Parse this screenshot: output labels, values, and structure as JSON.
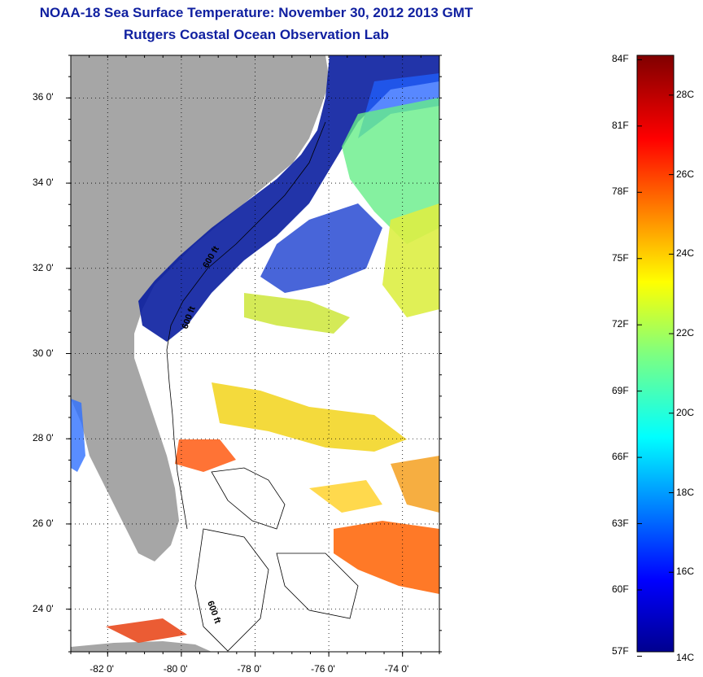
{
  "header": {
    "title": "NOAA-18 Sea Surface Temperature:  November 30, 2012 2013 GMT",
    "subtitle": "Rutgers Coastal Ocean Observation Lab"
  },
  "map": {
    "lon_labels": [
      "-82 0'",
      "-80 0'",
      "-78 0'",
      "-76 0'",
      "-74 0'"
    ],
    "lat_labels": [
      "36 0'",
      "34 0'",
      "32 0'",
      "30 0'",
      "28 0'",
      "26 0'",
      "24 0'"
    ],
    "lon_values": [
      -82,
      -80,
      -78,
      -76,
      -74
    ],
    "lat_values": [
      36,
      34,
      32,
      30,
      28,
      26,
      24
    ],
    "lon_range": [
      -83,
      -73
    ],
    "lat_range": [
      23,
      37
    ],
    "grid": "dotted",
    "contour_label": "600 ft",
    "land_color": "#a6a6a6",
    "ocean_no_data_color": "#ffffff"
  },
  "colorbar": {
    "fahrenheit_labels": [
      "84F",
      "81F",
      "78F",
      "75F",
      "72F",
      "69F",
      "66F",
      "63F",
      "60F",
      "57F"
    ],
    "fahrenheit_values": [
      84,
      81,
      78,
      75,
      72,
      69,
      66,
      63,
      60,
      57
    ],
    "celsius_labels": [
      "28C",
      "26C",
      "24C",
      "22C",
      "20C",
      "18C",
      "16C",
      "14C"
    ],
    "celsius_values": [
      28,
      26,
      24,
      22,
      20,
      18,
      16,
      14
    ],
    "range_c": [
      14,
      29
    ],
    "colormap": "jet"
  }
}
